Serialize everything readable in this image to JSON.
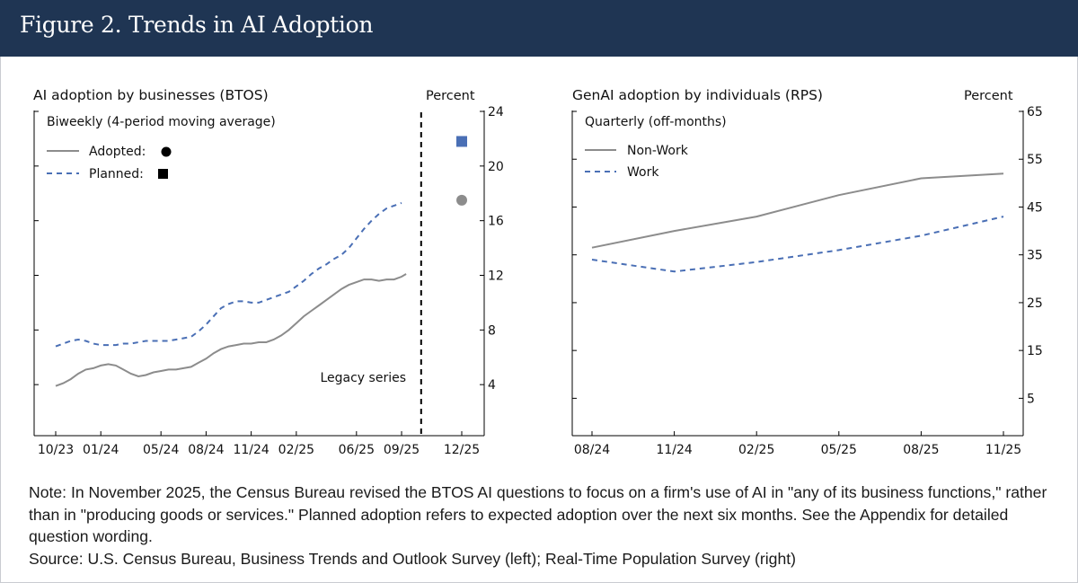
{
  "figure": {
    "title": "Figure 2. Trends in AI Adoption",
    "note": "Note: In November 2025, the Census Bureau revised the BTOS AI questions to focus on a firm's use of AI in \"any of its business functions,\" rather than in \"producing goods or services.\" Planned adoption refers to expected adoption over the next six months. See the Appendix for detailed question wording.",
    "source": "Source: U.S. Census Bureau, Business Trends and Outlook Survey (left); Real-Time Population Survey (right)"
  },
  "colors": {
    "header_bg": "#1f3553",
    "gray_series": "#8c8c8c",
    "blue_series": "#4a6fb5",
    "axis": "#000000"
  },
  "chart_data": [
    {
      "type": "line",
      "title": "AI adoption by businesses (BTOS)",
      "ylabel": "Percent",
      "legend_title": "Biweekly (4-period moving average)",
      "legend_position": "top-left",
      "ylim": [
        0,
        24
      ],
      "yticks": [
        4,
        8,
        12,
        16,
        20,
        24
      ],
      "xlim": [
        0,
        27
      ],
      "xtick_positions": [
        0,
        3,
        7,
        10,
        13,
        16,
        20,
        23,
        27
      ],
      "xtick_labels": [
        "10/23",
        "01/24",
        "05/24",
        "08/24",
        "11/24",
        "02/25",
        "06/25",
        "09/25",
        "12/25"
      ],
      "annotation": "Legacy series",
      "series_break_at": 24.3,
      "series": [
        {
          "name": "Adopted:",
          "style": "solid",
          "color": "#8c8c8c",
          "marker": "circle",
          "points": [
            [
              0,
              3.9
            ],
            [
              0.5,
              4.1
            ],
            [
              1,
              4.4
            ],
            [
              1.5,
              4.8
            ],
            [
              2,
              5.1
            ],
            [
              2.5,
              5.2
            ],
            [
              3,
              5.4
            ],
            [
              3.5,
              5.5
            ],
            [
              4,
              5.4
            ],
            [
              4.5,
              5.1
            ],
            [
              5,
              4.8
            ],
            [
              5.5,
              4.6
            ],
            [
              6,
              4.7
            ],
            [
              6.5,
              4.9
            ],
            [
              7,
              5.0
            ],
            [
              7.5,
              5.1
            ],
            [
              8,
              5.1
            ],
            [
              8.5,
              5.2
            ],
            [
              9,
              5.3
            ],
            [
              9.5,
              5.6
            ],
            [
              10,
              5.9
            ],
            [
              10.5,
              6.3
            ],
            [
              11,
              6.6
            ],
            [
              11.5,
              6.8
            ],
            [
              12,
              6.9
            ],
            [
              12.5,
              7.0
            ],
            [
              13,
              7.0
            ],
            [
              13.5,
              7.1
            ],
            [
              14,
              7.1
            ],
            [
              14.5,
              7.3
            ],
            [
              15,
              7.6
            ],
            [
              15.5,
              8.0
            ],
            [
              16,
              8.5
            ],
            [
              16.5,
              9.0
            ],
            [
              17,
              9.4
            ],
            [
              17.5,
              9.8
            ],
            [
              18,
              10.2
            ],
            [
              18.5,
              10.6
            ],
            [
              19,
              11.0
            ],
            [
              19.5,
              11.3
            ],
            [
              20,
              11.5
            ],
            [
              20.5,
              11.7
            ],
            [
              21,
              11.7
            ],
            [
              21.5,
              11.6
            ],
            [
              22,
              11.7
            ],
            [
              22.5,
              11.7
            ],
            [
              23,
              11.9
            ],
            [
              23.3,
              12.1
            ]
          ],
          "post_revision": {
            "x": 27,
            "value": 17.5
          }
        },
        {
          "name": "Planned:",
          "style": "dashed",
          "color": "#4a6fb5",
          "marker": "square",
          "points": [
            [
              0,
              6.8
            ],
            [
              0.5,
              7.0
            ],
            [
              1,
              7.2
            ],
            [
              1.5,
              7.3
            ],
            [
              2,
              7.2
            ],
            [
              2.5,
              7.0
            ],
            [
              3,
              6.9
            ],
            [
              3.5,
              6.9
            ],
            [
              4,
              6.9
            ],
            [
              4.5,
              7.0
            ],
            [
              5,
              7.0
            ],
            [
              5.5,
              7.1
            ],
            [
              6,
              7.2
            ],
            [
              6.5,
              7.2
            ],
            [
              7,
              7.2
            ],
            [
              7.5,
              7.2
            ],
            [
              8,
              7.3
            ],
            [
              8.5,
              7.4
            ],
            [
              9,
              7.5
            ],
            [
              9.5,
              7.9
            ],
            [
              10,
              8.4
            ],
            [
              10.5,
              9.0
            ],
            [
              11,
              9.6
            ],
            [
              11.5,
              9.9
            ],
            [
              12,
              10.1
            ],
            [
              12.5,
              10.1
            ],
            [
              13,
              10.0
            ],
            [
              13.5,
              10.0
            ],
            [
              14,
              10.2
            ],
            [
              14.5,
              10.4
            ],
            [
              15,
              10.6
            ],
            [
              15.5,
              10.8
            ],
            [
              16,
              11.2
            ],
            [
              16.5,
              11.6
            ],
            [
              17,
              12.1
            ],
            [
              17.5,
              12.5
            ],
            [
              18,
              12.8
            ],
            [
              18.5,
              13.2
            ],
            [
              19,
              13.5
            ],
            [
              19.5,
              14.0
            ],
            [
              20,
              14.7
            ],
            [
              20.5,
              15.4
            ],
            [
              21,
              16.0
            ],
            [
              21.5,
              16.5
            ],
            [
              22,
              16.9
            ],
            [
              22.5,
              17.1
            ],
            [
              23,
              17.3
            ]
          ],
          "post_revision": {
            "x": 27,
            "value": 21.8
          }
        }
      ]
    },
    {
      "type": "line",
      "title": "GenAI adoption by individuals (RPS)",
      "ylabel": "Percent",
      "legend_title": "Quarterly (off-months)",
      "legend_position": "top-left",
      "ylim": [
        0,
        65
      ],
      "yticks": [
        5,
        15,
        25,
        35,
        45,
        55,
        65
      ],
      "categories": [
        "08/24",
        "11/24",
        "02/25",
        "05/25",
        "08/25",
        "11/25"
      ],
      "series": [
        {
          "name": "Non-Work",
          "style": "solid",
          "color": "#8c8c8c",
          "values": [
            36.5,
            40,
            43,
            47.5,
            51,
            52
          ]
        },
        {
          "name": "Work",
          "style": "dashed",
          "color": "#4a6fb5",
          "values": [
            34,
            31.5,
            33.5,
            36,
            39,
            43
          ]
        }
      ]
    }
  ]
}
